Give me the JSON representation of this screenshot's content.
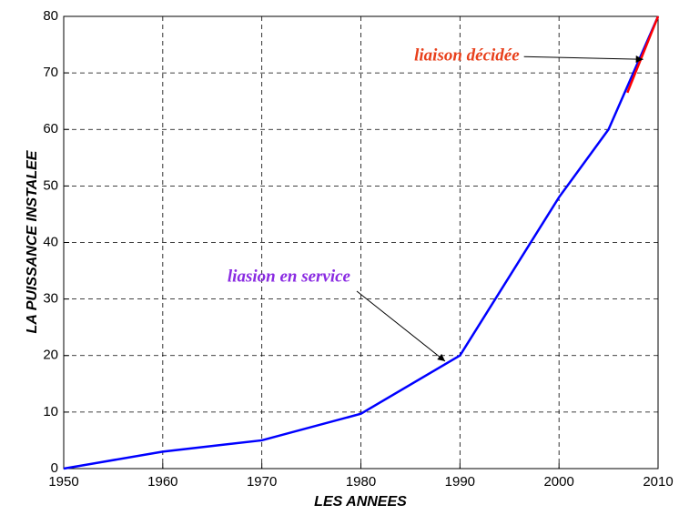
{
  "chart_data": {
    "type": "line",
    "xlabel": "LES ANNEES",
    "ylabel": "LA PUISSANCE INSTALEE",
    "series": [
      {
        "color": "#0000ff",
        "x": [
          1950,
          1960,
          1970,
          1980,
          1990,
          2000,
          2005,
          2010
        ],
        "values": [
          0,
          3,
          5,
          9.7,
          20,
          48,
          60,
          80
        ]
      },
      {
        "color": "#ff0000",
        "x": [
          2006.9,
          2010
        ],
        "values": [
          66.5,
          80
        ]
      }
    ],
    "annotations": [
      {
        "text": "liaison décidée",
        "color": "#e8401c",
        "x": 2008.5,
        "y": 72.4
      },
      {
        "text": "liasion en service",
        "color": "#8a2be2",
        "x": 1988.5,
        "y": 19
      }
    ],
    "xlim": [
      1950,
      2010
    ],
    "xticks": [
      1950,
      1960,
      1970,
      1980,
      1990,
      2000,
      2010
    ],
    "ylim": [
      0,
      80
    ],
    "yticks": [
      0,
      10,
      20,
      30,
      40,
      50,
      60,
      70,
      80
    ],
    "grid": true
  }
}
